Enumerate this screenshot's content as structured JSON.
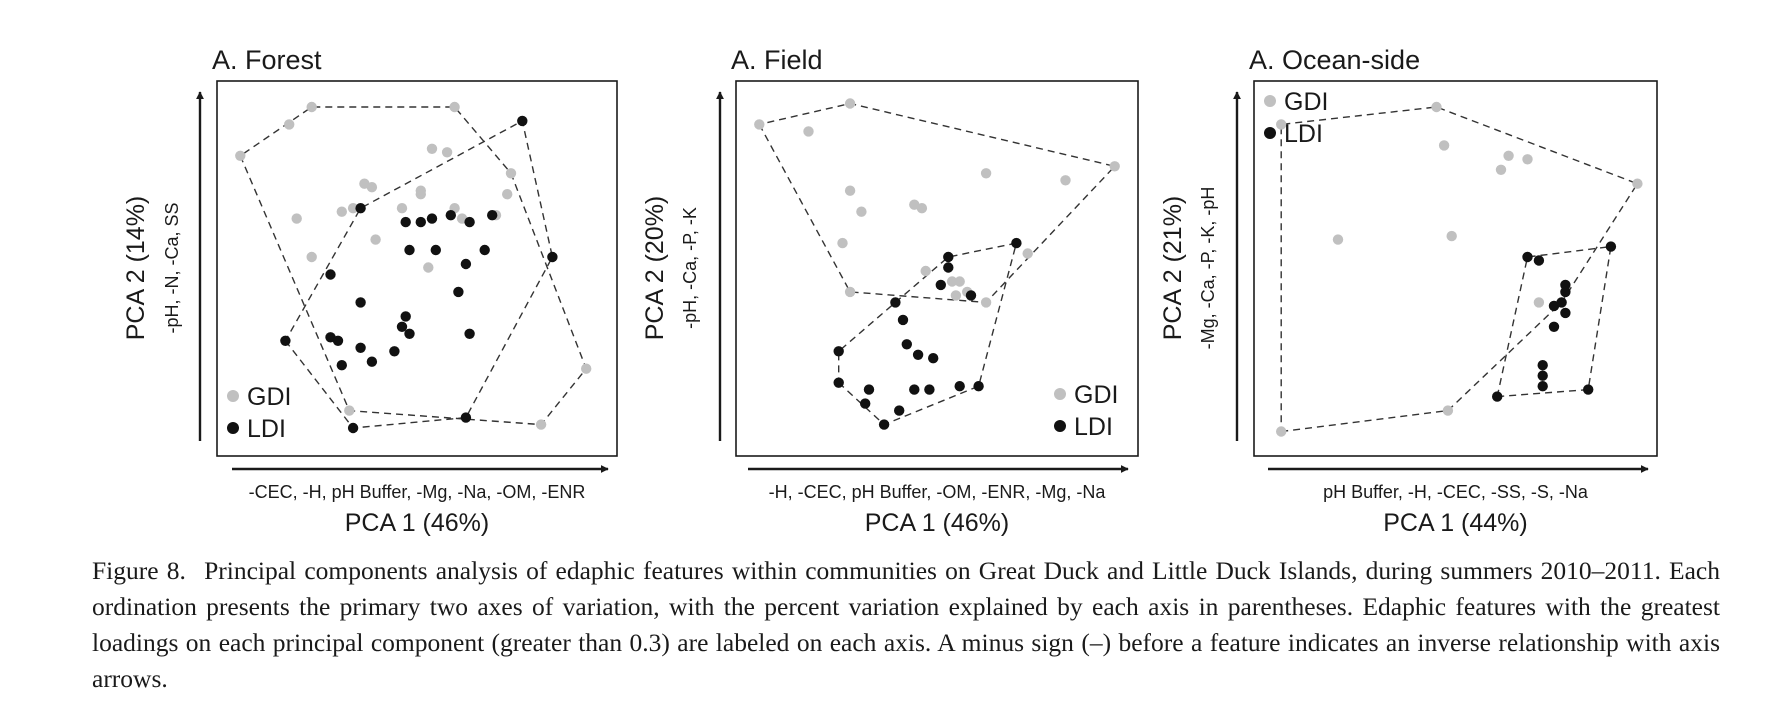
{
  "colors": {
    "gdi": "#c0c0c0",
    "ldi": "#111111",
    "frame": "#1a1a1a",
    "hull": "#333333"
  },
  "chart_data": [
    {
      "type": "scatter",
      "title": "A. Forest",
      "xlabel": "PCA 1 (46%)",
      "xaxis_features": "-CEC, -H, pH Buffer, -Mg, -Na, -OM, -ENR",
      "ylabel": "PCA 2 (14%)",
      "yaxis_features": "-pH, -N, -Ca, SS",
      "xlim": [
        0,
        100
      ],
      "ylim": [
        0,
        100
      ],
      "legend_position": "bottom-left",
      "series": [
        {
          "name": "GDI",
          "points": [
            [
              22,
              96
            ],
            [
              16,
              91
            ],
            [
              60,
              96
            ],
            [
              3,
              82
            ],
            [
              75,
              77
            ],
            [
              54,
              84
            ],
            [
              58,
              83
            ],
            [
              36,
              74
            ],
            [
              38,
              73
            ],
            [
              51,
              72
            ],
            [
              51,
              71
            ],
            [
              74,
              71
            ],
            [
              60,
              67
            ],
            [
              46,
              67
            ],
            [
              33,
              67
            ],
            [
              30,
              66
            ],
            [
              18,
              64
            ],
            [
              71,
              65
            ],
            [
              62,
              64
            ],
            [
              39,
              58
            ],
            [
              22,
              53
            ],
            [
              53,
              50
            ],
            [
              32,
              9
            ],
            [
              83,
              5
            ],
            [
              95,
              21
            ]
          ]
        },
        {
          "name": "LDI",
          "points": [
            [
              78,
              92
            ],
            [
              35,
              67
            ],
            [
              51,
              63
            ],
            [
              54,
              64
            ],
            [
              47,
              63
            ],
            [
              59,
              65
            ],
            [
              70,
              65
            ],
            [
              64,
              63
            ],
            [
              48,
              55
            ],
            [
              55,
              55
            ],
            [
              63,
              51
            ],
            [
              68,
              55
            ],
            [
              86,
              53
            ],
            [
              27,
              48
            ],
            [
              61,
              43
            ],
            [
              35,
              40
            ],
            [
              47,
              36
            ],
            [
              46,
              33
            ],
            [
              48,
              31
            ],
            [
              27,
              30
            ],
            [
              29,
              29
            ],
            [
              35,
              27
            ],
            [
              44,
              26
            ],
            [
              15,
              29
            ],
            [
              30,
              22
            ],
            [
              38,
              23
            ],
            [
              64,
              31
            ],
            [
              63,
              7
            ],
            [
              33,
              4
            ]
          ]
        }
      ]
    },
    {
      "type": "scatter",
      "title": "A. Field",
      "xlabel": "PCA 1 (46%)",
      "xaxis_features": "-H, -CEC, pH Buffer, -OM, -ENR, -Mg, -Na",
      "ylabel": "PCA 2 (20%)",
      "yaxis_features": "-pH, -Ca, -P, -K",
      "xlim": [
        0,
        100
      ],
      "ylim": [
        0,
        100
      ],
      "legend_position": "bottom-right",
      "series": [
        {
          "name": "GDI",
          "points": [
            [
              3,
              91
            ],
            [
              16,
              89
            ],
            [
              27,
              97
            ],
            [
              97,
              79
            ],
            [
              63,
              77
            ],
            [
              84,
              75
            ],
            [
              27,
              72
            ],
            [
              30,
              66
            ],
            [
              44,
              68
            ],
            [
              46,
              67
            ],
            [
              25,
              57
            ],
            [
              74,
              54
            ],
            [
              47,
              49
            ],
            [
              54,
              46
            ],
            [
              56,
              46
            ],
            [
              27,
              43
            ],
            [
              55,
              42
            ],
            [
              58,
              43
            ],
            [
              63,
              40
            ]
          ]
        },
        {
          "name": "LDI",
          "points": [
            [
              71,
              57
            ],
            [
              53,
              53
            ],
            [
              53,
              50
            ],
            [
              51,
              45
            ],
            [
              59,
              42
            ],
            [
              39,
              40
            ],
            [
              41,
              35
            ],
            [
              24,
              26
            ],
            [
              42,
              28
            ],
            [
              45,
              25
            ],
            [
              49,
              24
            ],
            [
              24,
              17
            ],
            [
              32,
              15
            ],
            [
              44,
              15
            ],
            [
              48,
              15
            ],
            [
              56,
              16
            ],
            [
              61,
              16
            ],
            [
              31,
              11
            ],
            [
              40,
              9
            ],
            [
              36,
              5
            ]
          ]
        }
      ]
    },
    {
      "type": "scatter",
      "title": "A. Ocean-side",
      "xlabel": "PCA 1 (44%)",
      "xaxis_features": "pH Buffer, -H, -CEC, -SS, -S, -Na",
      "ylabel": "PCA 2 (21%)",
      "yaxis_features": "-Mg, -Ca, -P, -K, -pH",
      "xlim": [
        0,
        100
      ],
      "ylim": [
        0,
        100
      ],
      "legend_position": "top-left",
      "series": [
        {
          "name": "GDI",
          "points": [
            [
              45,
              96
            ],
            [
              4,
              91
            ],
            [
              47,
              85
            ],
            [
              64,
              82
            ],
            [
              69,
              81
            ],
            [
              62,
              78
            ],
            [
              19,
              58
            ],
            [
              49,
              59
            ],
            [
              98,
              74
            ],
            [
              72,
              40
            ],
            [
              76,
              39
            ],
            [
              78,
              40
            ],
            [
              48,
              9
            ],
            [
              4,
              3
            ]
          ]
        },
        {
          "name": "LDI",
          "points": [
            [
              69,
              53
            ],
            [
              72,
              52
            ],
            [
              79,
              45
            ],
            [
              79,
              43
            ],
            [
              79,
              37
            ],
            [
              76,
              39
            ],
            [
              78,
              40
            ],
            [
              76,
              33
            ],
            [
              91,
              56
            ],
            [
              73,
              22
            ],
            [
              73,
              19
            ],
            [
              73,
              16
            ],
            [
              85,
              15
            ],
            [
              61,
              13
            ]
          ]
        }
      ]
    }
  ],
  "caption": {
    "label": "Figure 8.",
    "text": "Principal components analysis of edaphic features within communities on Great Duck and Little Duck Islands, during summers 2010–2011. Each ordination presents the primary two axes of variation, with the percent variation explained by each axis in parentheses. Edaphic features with the greatest loadings on each principal component (greater than 0.3) are labeled on each axis. A minus sign (–) before a feature indicates an inverse relationship with axis arrows."
  }
}
